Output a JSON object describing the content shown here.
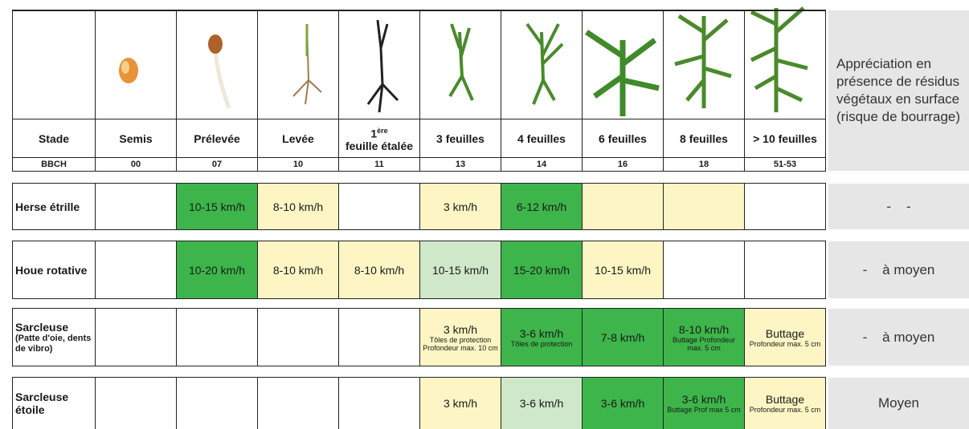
{
  "header": {
    "stade_label": "Stade",
    "bbch_label": "BBCH",
    "appreciation": "Appréciation en présence de résidus végétaux en surface (risque de bourrage)",
    "stages": [
      {
        "label": "Semis",
        "bbch": "00"
      },
      {
        "label": "Prélevée",
        "bbch": "07"
      },
      {
        "label": "Levée",
        "bbch": "10"
      },
      {
        "prefix": "1",
        "sup": "ère",
        "label": "feuille étalée",
        "bbch": "11"
      },
      {
        "label": "3 feuilles",
        "bbch": "13"
      },
      {
        "label": "4 feuilles",
        "bbch": "14"
      },
      {
        "label": "6 feuilles",
        "bbch": "16"
      },
      {
        "label": "8 feuilles",
        "bbch": "18"
      },
      {
        "label": "> 10 feuilles",
        "bbch": "51-53"
      }
    ]
  },
  "rows": [
    {
      "tool": "Herse étrille",
      "appreciation": "-    -",
      "cells": [
        {
          "color": "#ffffff"
        },
        {
          "color": "#3db54a",
          "text": "10-15 km/h"
        },
        {
          "color": "#fdf6c4",
          "text": "8-10 km/h"
        },
        {
          "color": "#ffffff"
        },
        {
          "color": "#fdf6c4",
          "text": "3 km/h"
        },
        {
          "color": "#3db54a",
          "text": "6-12 km/h"
        },
        {
          "color": "#fdf6c4"
        },
        {
          "color": "#fdf6c4"
        },
        {
          "color": "#ffffff"
        }
      ]
    },
    {
      "tool": "Houe rotative",
      "appreciation": "-    à moyen",
      "cells": [
        {
          "color": "#ffffff"
        },
        {
          "color": "#3db54a",
          "text": "10-20 km/h"
        },
        {
          "color": "#fdf6c4",
          "text": "8-10 km/h"
        },
        {
          "color": "#fdf6c4",
          "text": "8-10 km/h"
        },
        {
          "color": "#cfe8c9",
          "text": "10-15 km/h"
        },
        {
          "color": "#3db54a",
          "text": "15-20 km/h"
        },
        {
          "color": "#fdf6c4",
          "text": "10-15 km/h"
        },
        {
          "color": "#ffffff"
        },
        {
          "color": "#ffffff"
        }
      ]
    },
    {
      "tool": "Sarcleuse",
      "tool_detail": "(Patte d'oie, dents de vibro)",
      "appreciation": "-    à moyen",
      "cells": [
        {
          "color": "#ffffff"
        },
        {
          "color": "#ffffff"
        },
        {
          "color": "#ffffff"
        },
        {
          "color": "#ffffff"
        },
        {
          "color": "#fdf6c4",
          "text": "3 km/h",
          "note": "Tôles de protection Profondeur max. 10 cm"
        },
        {
          "color": "#3db54a",
          "text": "3-6 km/h",
          "note": "Tôles de protection"
        },
        {
          "color": "#3db54a",
          "text": "7-8 km/h"
        },
        {
          "color": "#3db54a",
          "text": "8-10 km/h",
          "note": "Buttage Profondeur max. 5 cm"
        },
        {
          "color": "#fdf6c4",
          "text": "Buttage",
          "note": "Profondeur max. 5 cm"
        }
      ]
    },
    {
      "tool": "Sarcleuse étoile",
      "appreciation": "Moyen",
      "cells": [
        {
          "color": "#ffffff"
        },
        {
          "color": "#ffffff"
        },
        {
          "color": "#ffffff"
        },
        {
          "color": "#ffffff"
        },
        {
          "color": "#fdf6c4",
          "text": "3 km/h"
        },
        {
          "color": "#cfe8c9",
          "text": "3-6 km/h"
        },
        {
          "color": "#3db54a",
          "text": "3-6 km/h"
        },
        {
          "color": "#3db54a",
          "text": "3-6 km/h",
          "note": "Buttage Prof max 5 cm"
        },
        {
          "color": "#fdf6c4",
          "text": "Buttage",
          "note": "Profondeur max. 5 cm"
        }
      ]
    }
  ]
}
